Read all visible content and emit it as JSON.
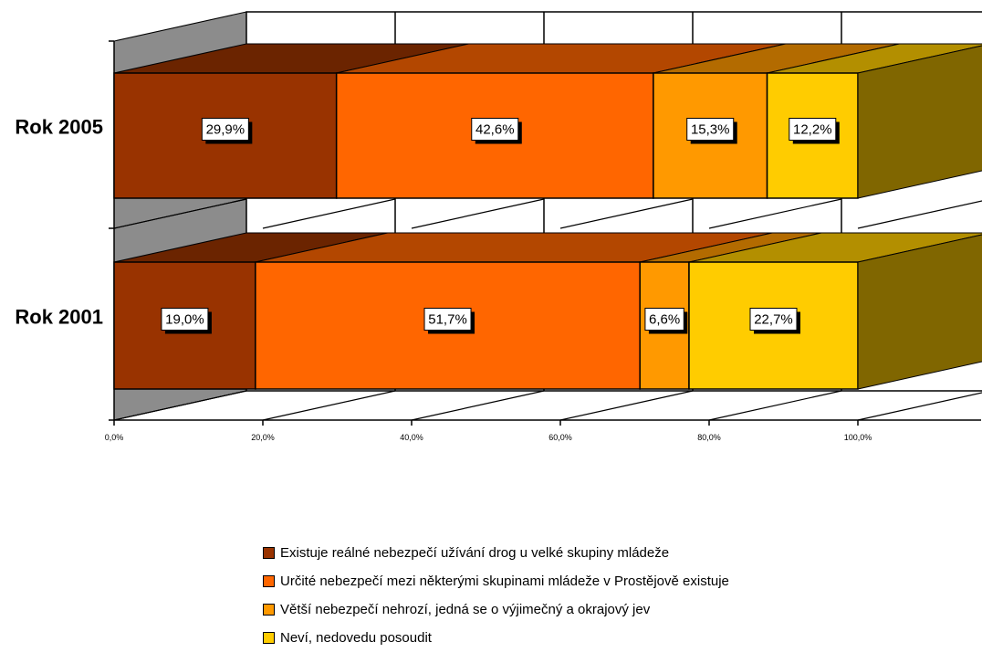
{
  "chart_data": {
    "type": "bar",
    "orientation": "horizontal",
    "stacked": "100%",
    "three_d": true,
    "categories": [
      "Rok 2005",
      "Rok 2001"
    ],
    "series": [
      {
        "name": "Existuje reálné nebezpečí užívání drog u velké skupiny mládeže",
        "values": [
          29.9,
          19.0
        ],
        "labels": [
          "29,9%",
          "19,0%"
        ],
        "color": "#993300",
        "top_color": "#6b2400"
      },
      {
        "name": "Určité nebezpečí mezi některými skupinami mládeže v Prostějově existuje",
        "values": [
          42.6,
          51.7
        ],
        "labels": [
          "42,6%",
          "51,7%"
        ],
        "color": "#ff6600",
        "top_color": "#b34700"
      },
      {
        "name": "Větší nebezpečí nehrozí, jedná se o výjimečný a okrajový jev",
        "values": [
          15.3,
          6.6
        ],
        "labels": [
          "15,3%",
          "6,6%"
        ],
        "color": "#ff9900",
        "top_color": "#b36b00"
      },
      {
        "name": "Neví, nedovedu posoudit",
        "values": [
          12.2,
          22.7
        ],
        "labels": [
          "12,2%",
          "22,7%"
        ],
        "color": "#ffcc00",
        "top_color": "#b38f00"
      }
    ],
    "side_color": "#806600",
    "x_ticks": [
      0,
      20,
      40,
      60,
      80,
      100
    ],
    "x_tick_labels": [
      "0,0%",
      "20,0%",
      "40,0%",
      "60,0%",
      "80,0%",
      "100,0%"
    ],
    "xlim": [
      0,
      100
    ],
    "grid": true,
    "legend_position": "bottom"
  }
}
